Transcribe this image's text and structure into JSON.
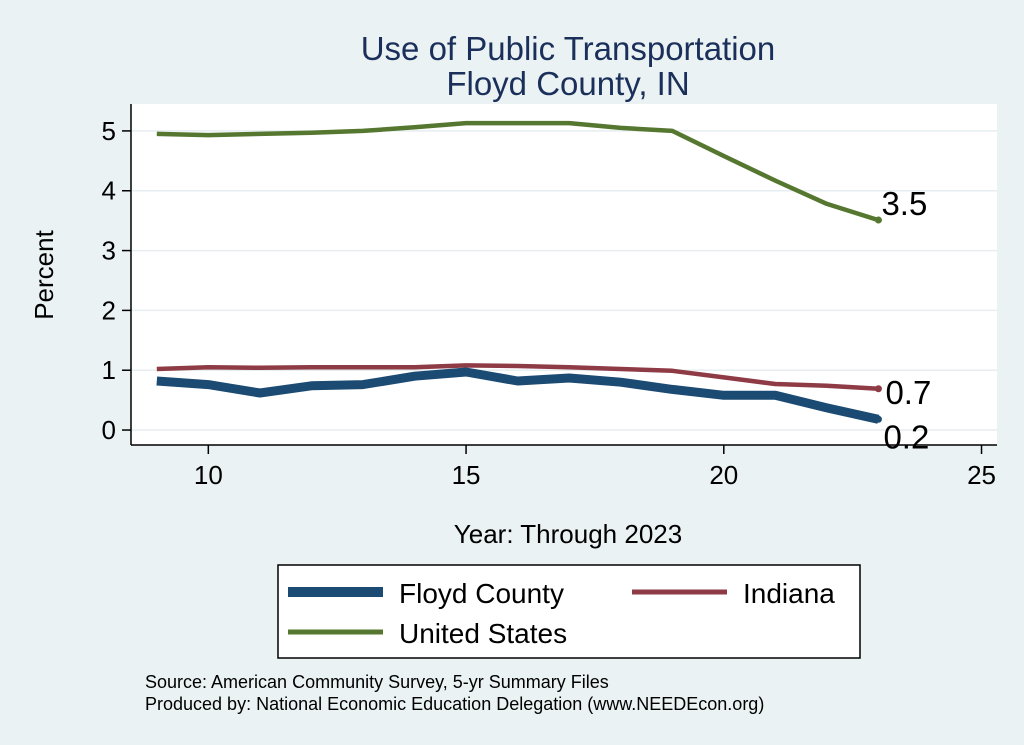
{
  "chart_data": {
    "type": "line",
    "title": [
      "Use of Public Transportation",
      "Floyd County, IN"
    ],
    "xlabel": "Year: Through 2023",
    "ylabel": "Percent",
    "xlim": [
      8.5,
      25.3
    ],
    "ylim": [
      -0.25,
      5.45
    ],
    "xticks": [
      10,
      15,
      20,
      25
    ],
    "yticks": [
      0,
      1,
      2,
      3,
      4,
      5
    ],
    "grid": "horizontal",
    "legend_position": "bottom",
    "x": [
      9,
      10,
      11,
      12,
      13,
      14,
      15,
      16,
      17,
      18,
      19,
      20,
      21,
      22,
      23
    ],
    "series": [
      {
        "name": "Floyd County",
        "color": "#1b4a72",
        "values": [
          0.82,
          0.76,
          0.62,
          0.74,
          0.76,
          0.9,
          0.97,
          0.82,
          0.87,
          0.8,
          0.68,
          0.58,
          0.58,
          0.37,
          0.18
        ],
        "end_label": "0.2"
      },
      {
        "name": "Indiana",
        "color": "#8e3b46",
        "values": [
          1.02,
          1.05,
          1.04,
          1.05,
          1.05,
          1.05,
          1.08,
          1.07,
          1.05,
          1.02,
          0.99,
          0.88,
          0.77,
          0.74,
          0.69
        ],
        "end_label": "0.7"
      },
      {
        "name": "United States",
        "color": "#55772f",
        "values": [
          4.95,
          4.93,
          4.95,
          4.97,
          5.0,
          5.06,
          5.13,
          5.13,
          5.13,
          5.05,
          5.0,
          4.58,
          4.17,
          3.78,
          3.51
        ],
        "end_label": "3.5"
      }
    ]
  },
  "source_lines": [
    "Source: American Community Survey, 5-yr Summary Files",
    "Produced by: National Economic Education Delegation (www.NEEDEcon.org)"
  ]
}
